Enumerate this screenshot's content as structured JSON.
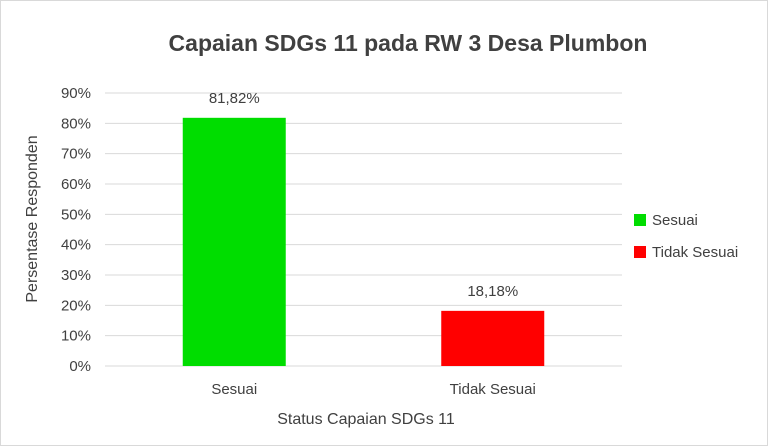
{
  "chart_data": {
    "type": "bar",
    "title": "Capaian SDGs 11 pada RW 3 Desa Plumbon",
    "xlabel": "Status Capaian SDGs 11",
    "ylabel": "Persentase Responden",
    "categories": [
      "Sesuai",
      "Tidak Sesuai"
    ],
    "values": [
      81.82,
      18.18
    ],
    "data_labels": [
      "81,82%",
      "18,18%"
    ],
    "colors": [
      "#00dd00",
      "#ff0000"
    ],
    "ylim": [
      0,
      90
    ],
    "yticks": [
      0,
      10,
      20,
      30,
      40,
      50,
      60,
      70,
      80,
      90
    ],
    "ytick_labels": [
      "0%",
      "10%",
      "20%",
      "30%",
      "40%",
      "50%",
      "60%",
      "70%",
      "80%",
      "90%"
    ],
    "grid": true,
    "legend": {
      "placement": "right",
      "entries": [
        "Sesuai",
        "Tidak Sesuai"
      ]
    }
  }
}
